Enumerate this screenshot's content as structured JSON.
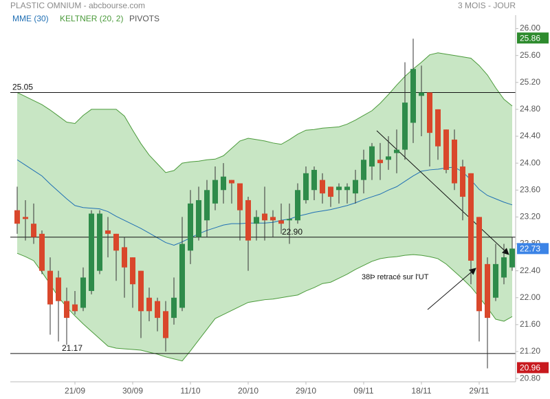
{
  "chart_data": {
    "type": "candlestick",
    "title": "PLASTIC OMNIUM - abcbourse.com",
    "subtitle": "3 MOIS - JOUR",
    "annotation": "38Þ retracé sur l'UT",
    "categories": [
      null,
      null,
      null,
      null,
      null,
      null,
      null,
      "21/09",
      null,
      null,
      null,
      null,
      null,
      null,
      "30/09",
      null,
      null,
      null,
      null,
      null,
      null,
      "11/10",
      null,
      null,
      null,
      null,
      null,
      null,
      "20/10",
      null,
      null,
      null,
      null,
      null,
      null,
      "29/10",
      null,
      null,
      null,
      null,
      null,
      null,
      "09/11",
      null,
      null,
      null,
      null,
      null,
      null,
      "18/11",
      null,
      null,
      null,
      null,
      null,
      null,
      "29/11",
      null,
      null,
      null,
      null
    ],
    "open": [
      23.3,
      23.2,
      23.1,
      22.95,
      22.4,
      22.3,
      21.95,
      21.9,
      21.85,
      22.1,
      22.4,
      23.0,
      22.95,
      22.75,
      22.6,
      22.4,
      22.0,
      21.95,
      21.8,
      21.7,
      21.85,
      22.7,
      22.9,
      23.15,
      23.4,
      23.6,
      23.75,
      23.7,
      23.45,
      23.1,
      23.25,
      23.2,
      23.15,
      23.15,
      23.15,
      23.45,
      23.6,
      23.75,
      23.65,
      23.6,
      23.6,
      23.55,
      23.75,
      23.95,
      24.05,
      24.05,
      24.15,
      24.2,
      24.6,
      25.0,
      25.05,
      24.8,
      24.5,
      24.35,
      23.95,
      23.85,
      23.2,
      22.5,
      22.0,
      22.3,
      22.45
    ],
    "high": [
      23.65,
      23.45,
      23.4,
      23.0,
      22.6,
      22.4,
      22.15,
      22.1,
      22.45,
      23.3,
      23.3,
      23.2,
      22.95,
      22.9,
      22.6,
      22.4,
      22.15,
      22.0,
      21.95,
      22.3,
      23.2,
      23.6,
      23.65,
      23.75,
      23.95,
      24.0,
      23.75,
      23.7,
      23.5,
      23.3,
      23.65,
      23.3,
      23.4,
      23.4,
      23.7,
      23.95,
      23.95,
      23.85,
      23.65,
      23.7,
      23.7,
      23.9,
      24.2,
      24.3,
      24.3,
      24.4,
      24.5,
      25.5,
      25.85,
      25.45,
      25.05,
      24.8,
      24.5,
      24.5,
      24.05,
      23.85,
      23.2,
      22.6,
      22.8,
      22.8,
      22.9
    ],
    "low": [
      22.95,
      22.85,
      22.8,
      22.35,
      21.45,
      21.35,
      21.3,
      21.75,
      21.8,
      22.05,
      22.35,
      22.6,
      22.25,
      22.0,
      21.85,
      21.4,
      21.65,
      21.5,
      21.2,
      21.6,
      21.8,
      22.5,
      22.85,
      22.9,
      23.3,
      23.4,
      23.4,
      22.85,
      22.4,
      22.85,
      22.85,
      22.9,
      22.95,
      22.8,
      23.1,
      23.4,
      23.45,
      23.4,
      23.35,
      23.4,
      23.4,
      23.4,
      23.55,
      23.75,
      23.75,
      23.9,
      23.85,
      24.05,
      24.3,
      24.4,
      23.95,
      24.05,
      23.85,
      23.6,
      23.15,
      22.2,
      21.35,
      20.95,
      21.95,
      22.2,
      22.4
    ],
    "close": [
      23.1,
      23.17,
      22.9,
      22.4,
      21.9,
      21.95,
      21.7,
      21.8,
      22.3,
      23.25,
      23.25,
      22.95,
      22.7,
      22.45,
      22.2,
      21.8,
      21.8,
      21.7,
      21.4,
      22.0,
      22.8,
      23.4,
      23.45,
      23.6,
      23.75,
      23.8,
      23.7,
      23.3,
      22.85,
      23.2,
      23.15,
      23.15,
      23.1,
      23.17,
      23.6,
      23.85,
      23.9,
      23.55,
      23.5,
      23.65,
      23.65,
      23.75,
      24.05,
      24.25,
      24.0,
      24.1,
      24.2,
      24.9,
      25.4,
      25.05,
      24.45,
      24.25,
      23.9,
      23.7,
      23.5,
      22.55,
      21.8,
      21.7,
      22.5,
      22.6,
      22.73
    ],
    "up_color": "#2e8b4a",
    "down_color": "#d9472b",
    "series": [
      {
        "name": "MME (30)",
        "color": "#1f6fb4",
        "values": [
          24.05,
          23.97,
          23.89,
          23.81,
          23.69,
          23.58,
          23.47,
          23.37,
          23.34,
          23.33,
          23.32,
          23.28,
          23.21,
          23.15,
          23.09,
          23.03,
          22.96,
          22.89,
          22.82,
          22.78,
          22.83,
          22.89,
          22.95,
          23.0,
          23.04,
          23.08,
          23.1,
          23.1,
          23.11,
          23.11,
          23.11,
          23.12,
          23.15,
          23.17,
          23.21,
          23.24,
          23.27,
          23.29,
          23.31,
          23.34,
          23.37,
          23.41,
          23.46,
          23.5,
          23.54,
          23.6,
          23.65,
          23.73,
          23.81,
          23.88,
          23.9,
          23.91,
          23.93,
          23.94,
          23.87,
          23.75,
          23.61,
          23.52,
          23.47,
          23.42,
          23.38
        ]
      },
      {
        "name": "KELTNER (20, 2)",
        "color": "#4a9a3a",
        "fill": "#c8e6c4",
        "upper": [
          25.05,
          24.99,
          24.93,
          24.87,
          24.79,
          24.7,
          24.61,
          24.59,
          24.71,
          24.8,
          24.8,
          24.8,
          24.8,
          24.7,
          24.49,
          24.29,
          24.12,
          23.99,
          23.86,
          23.89,
          24.0,
          24.02,
          24.03,
          24.05,
          24.06,
          24.11,
          24.22,
          24.33,
          24.37,
          24.35,
          24.33,
          24.3,
          24.28,
          24.35,
          24.43,
          24.49,
          24.5,
          24.52,
          24.53,
          24.54,
          24.58,
          24.64,
          24.71,
          24.78,
          24.89,
          25.02,
          25.16,
          25.29,
          25.4,
          25.5,
          25.61,
          25.64,
          25.62,
          25.6,
          25.58,
          25.56,
          25.45,
          25.31,
          25.12,
          24.95,
          24.85
        ],
        "lower": [
          22.66,
          22.61,
          22.55,
          22.38,
          22.2,
          22.01,
          21.86,
          21.73,
          21.61,
          21.5,
          21.39,
          21.28,
          21.25,
          21.24,
          21.23,
          21.22,
          21.19,
          21.16,
          21.12,
          21.09,
          21.06,
          21.21,
          21.37,
          21.53,
          21.69,
          21.75,
          21.81,
          21.87,
          21.93,
          21.95,
          21.97,
          21.98,
          22.0,
          22.02,
          22.04,
          22.1,
          22.15,
          22.21,
          22.23,
          22.29,
          22.35,
          22.42,
          22.48,
          22.54,
          22.58,
          22.6,
          22.61,
          22.63,
          22.64,
          22.63,
          22.61,
          22.58,
          22.5,
          22.39,
          22.28,
          22.16,
          22.01,
          21.85,
          21.68,
          21.65,
          21.72
        ]
      },
      {
        "name": "PIVOTS",
        "color": "#555555",
        "levels": [
          {
            "value": 25.05,
            "label": "25.05"
          },
          {
            "value": 22.9,
            "label": "22.90"
          },
          {
            "value": 21.17,
            "label": "21.17"
          }
        ]
      }
    ],
    "price_labels": [
      {
        "value": 25.86,
        "label": "25.86",
        "color": "#2e8b2e"
      },
      {
        "value": 22.73,
        "label": "22.73",
        "color": "#3c84e6"
      },
      {
        "value": 20.96,
        "label": "20.96",
        "color": "#c8191e"
      }
    ],
    "ylim": [
      20.75,
      26.2
    ],
    "yticks": [
      {
        "value": 20.8,
        "label": "20.80"
      },
      {
        "value": 21.2,
        "label": "21.20"
      },
      {
        "value": 21.6,
        "label": "21.60"
      },
      {
        "value": 22.0,
        "label": "22.00"
      },
      {
        "value": 22.4,
        "label": "22.40"
      },
      {
        "value": 22.8,
        "label": "22.80"
      },
      {
        "value": 23.2,
        "label": "23.20"
      },
      {
        "value": 23.6,
        "label": "23.60"
      },
      {
        "value": 24.0,
        "label": "24.00"
      },
      {
        "value": 24.4,
        "label": "24.40"
      },
      {
        "value": 24.8,
        "label": "24.80"
      },
      {
        "value": 25.2,
        "label": "25.20"
      },
      {
        "value": 25.6,
        "label": "25.60"
      },
      {
        "value": 26.0,
        "label": "26.00"
      }
    ]
  }
}
